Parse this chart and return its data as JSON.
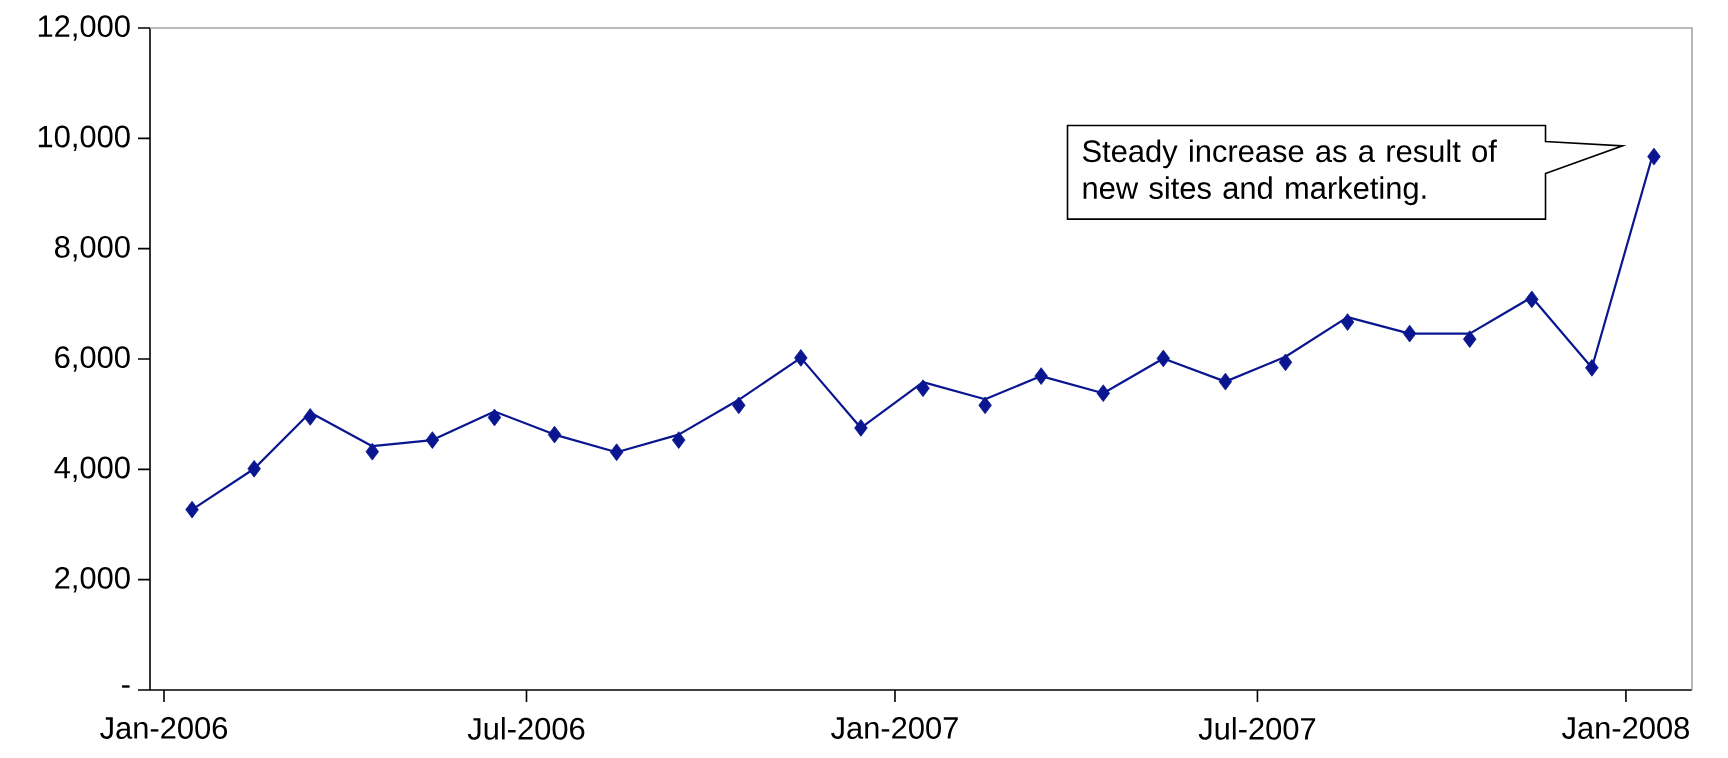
{
  "chart_data": {
    "type": "line",
    "x": [
      "2006-01-15",
      "2006-02-15",
      "2006-03-15",
      "2006-04-15",
      "2006-05-15",
      "2006-06-15",
      "2006-07-15",
      "2006-08-15",
      "2006-09-15",
      "2006-10-15",
      "2006-11-15",
      "2006-12-15",
      "2007-01-15",
      "2007-02-15",
      "2007-03-15",
      "2007-04-15",
      "2007-05-15",
      "2007-06-15",
      "2007-07-15",
      "2007-08-15",
      "2007-09-15",
      "2007-10-15",
      "2007-11-15",
      "2007-12-15",
      "2008-01-15"
    ],
    "series": [
      {
        "type": "line",
        "marker": "none",
        "color": "#0a1690",
        "values": [
          3270,
          4010,
          5030,
          4420,
          4530,
          5050,
          4630,
          4310,
          4630,
          5260,
          6020,
          4750,
          5580,
          5270,
          5690,
          5380,
          6010,
          5590,
          6040,
          6760,
          6460,
          6460,
          7120,
          5840,
          9780
        ]
      },
      {
        "type": "scatter",
        "marker": "diamond",
        "color": "#0a1690",
        "values": [
          3270,
          4010,
          4950,
          4320,
          4530,
          4940,
          4630,
          4310,
          4530,
          5160,
          6020,
          4750,
          5470,
          5160,
          5690,
          5380,
          6010,
          5590,
          5940,
          6670,
          6460,
          6360,
          7080,
          5840,
          9670
        ]
      }
    ],
    "xlim": [
      "2005-12-25",
      "2008-02-03"
    ],
    "xticks": [
      {
        "value": "2006-01-01",
        "label": "Jan-2006"
      },
      {
        "value": "2006-07-01",
        "label": "Jul-2006"
      },
      {
        "value": "2007-01-01",
        "label": "Jan-2007"
      },
      {
        "value": "2007-07-01",
        "label": "Jul-2007"
      },
      {
        "value": "2008-01-01",
        "label": "Jan-2008"
      }
    ],
    "ylim": [
      0,
      12000
    ],
    "yticks": [
      {
        "value": 0,
        "label": "-"
      },
      {
        "value": 2000,
        "label": "2,000"
      },
      {
        "value": 4000,
        "label": "4,000"
      },
      {
        "value": 6000,
        "label": "6,000"
      },
      {
        "value": 8000,
        "label": "8,000"
      },
      {
        "value": 10000,
        "label": "10,000"
      },
      {
        "value": 12000,
        "label": "12,000"
      }
    ],
    "grid": false,
    "legend": false,
    "annotations": [
      "Steady increase as a result of new sites and marketing."
    ]
  }
}
